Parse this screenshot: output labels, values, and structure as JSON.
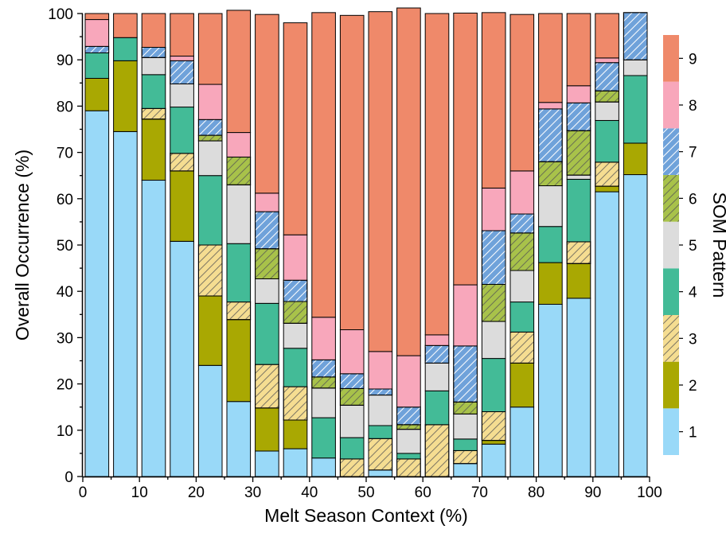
{
  "chart_data": {
    "type": "bar",
    "stacked": true,
    "xlabel": "Melt Season Context (%)",
    "ylabel": "Overall Occurrence (%)",
    "xlim": [
      0,
      100
    ],
    "ylim": [
      0,
      100
    ],
    "x_ticks": [
      0,
      10,
      20,
      30,
      40,
      50,
      60,
      70,
      80,
      90,
      100
    ],
    "y_ticks": [
      0,
      10,
      20,
      30,
      40,
      50,
      60,
      70,
      80,
      90,
      100
    ],
    "categories": [
      "0-5",
      "5-10",
      "10-15",
      "15-20",
      "20-25",
      "25-30",
      "30-35",
      "35-40",
      "40-45",
      "45-50",
      "50-55",
      "55-60",
      "60-65",
      "65-70",
      "70-75",
      "75-80",
      "80-85",
      "85-90",
      "90-95",
      "95-100"
    ],
    "bin_centers": [
      2.5,
      7.5,
      12.5,
      17.5,
      22.5,
      27.5,
      32.5,
      37.5,
      42.5,
      47.5,
      52.5,
      57.5,
      62.5,
      67.5,
      72.5,
      77.5,
      82.5,
      87.5,
      92.5,
      97.5
    ],
    "series": [
      {
        "name": "1",
        "color": "#99d9f8",
        "hatch": "none",
        "values": [
          79,
          74.5,
          64,
          50.8,
          24,
          16.2,
          5.5,
          6,
          4,
          0,
          1.4,
          0,
          0,
          2.8,
          7,
          15,
          37.2,
          38.5,
          61.5,
          65.2
        ]
      },
      {
        "name": "2",
        "color": "#a9a802",
        "hatch": "none",
        "values": [
          7,
          15.3,
          13.2,
          15.2,
          15,
          17.7,
          9.3,
          6.2,
          0,
          0,
          0,
          0,
          0,
          0,
          0.8,
          9.5,
          9,
          7.5,
          1.2,
          6.8
        ]
      },
      {
        "name": "3",
        "color": "#f5dd91",
        "hatch": "diag",
        "values": [
          0,
          0,
          2.3,
          3.8,
          11,
          3.8,
          9.4,
          7.2,
          0,
          3.8,
          6.8,
          3.8,
          11.2,
          2.8,
          6.2,
          6.7,
          0,
          4.7,
          5.2,
          0
        ]
      },
      {
        "name": "4",
        "color": "#43bb97",
        "hatch": "none",
        "values": [
          5.5,
          5,
          7.3,
          10,
          15,
          12.6,
          13.2,
          8.3,
          8.7,
          4.6,
          2.8,
          1.2,
          7.3,
          2.5,
          11.5,
          6.5,
          7.8,
          13.5,
          9,
          14.6
        ]
      },
      {
        "name": "5",
        "color": "#dcdcdc",
        "hatch": "none",
        "values": [
          0,
          0,
          3.7,
          5,
          7.5,
          12.7,
          5.3,
          5.4,
          6.4,
          7,
          6.6,
          5.2,
          6,
          5.4,
          8,
          6.8,
          8.8,
          0.9,
          4,
          3.4
        ]
      },
      {
        "name": "6",
        "color": "#a8c24a",
        "hatch": "diag",
        "values": [
          0,
          0,
          0,
          0,
          1.2,
          6,
          6.5,
          4.7,
          2.4,
          3.6,
          0,
          1,
          0,
          2.6,
          8,
          8.1,
          5.2,
          9.6,
          2.4,
          0
        ]
      },
      {
        "name": "7",
        "color": "#6fa2da",
        "hatch": "diag",
        "values": [
          1.4,
          0,
          2.2,
          5,
          3.4,
          0,
          8,
          4.6,
          3.7,
          3.2,
          1.3,
          3.8,
          3.8,
          12.1,
          11.6,
          4.1,
          11.4,
          6,
          6.1,
          10.2
        ]
      },
      {
        "name": "8",
        "color": "#f8a7bb",
        "hatch": "none",
        "values": [
          5.8,
          0,
          0,
          1,
          7.6,
          5.3,
          4,
          9.8,
          9.2,
          9.5,
          8.1,
          11.1,
          2.3,
          13.2,
          9.2,
          9.3,
          1.4,
          3.7,
          1,
          0
        ]
      },
      {
        "name": "9",
        "color": "#ef896a",
        "hatch": "none",
        "values": [
          1.3,
          5.2,
          7.3,
          9.2,
          15.3,
          26.4,
          38.6,
          45.8,
          65.8,
          67.9,
          73.4,
          75.1,
          69.4,
          58.7,
          37.9,
          33.8,
          19.2,
          15.6,
          9.6,
          0
        ]
      }
    ],
    "colorbar": {
      "title": "SOM Pattern",
      "labels": [
        "1",
        "2",
        "3",
        "4",
        "5",
        "6",
        "7",
        "8",
        "9"
      ]
    }
  }
}
